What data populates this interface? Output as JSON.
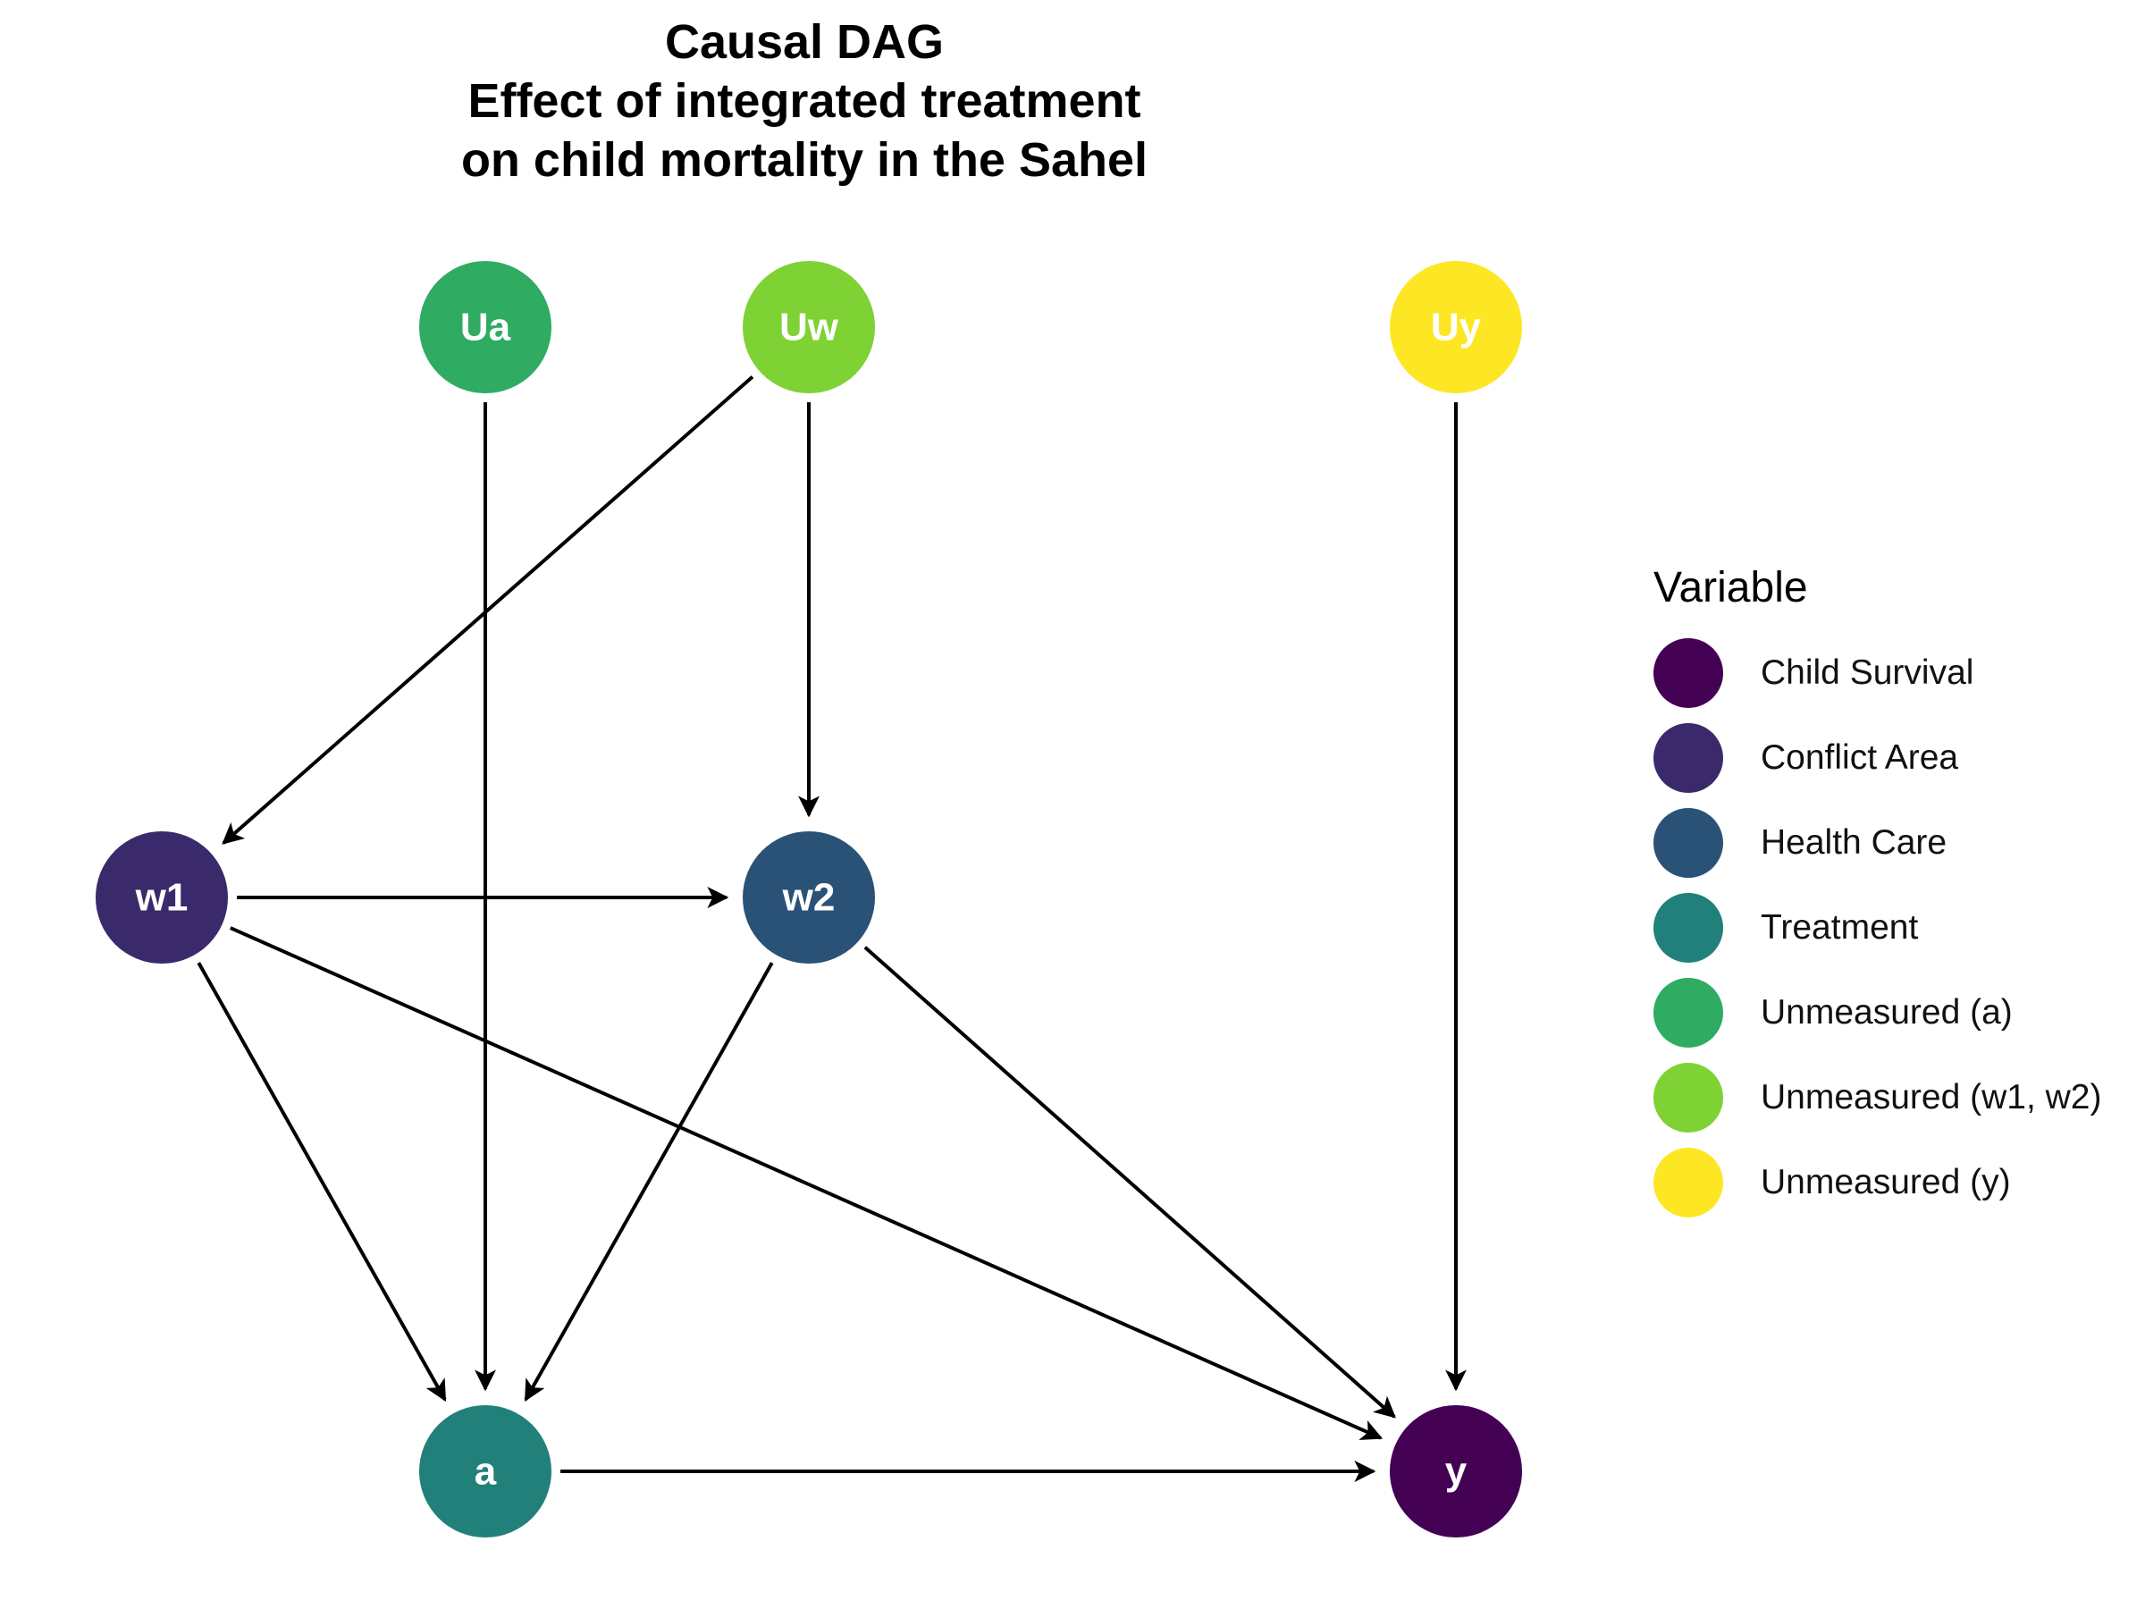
{
  "title_lines": [
    "Causal DAG",
    "Effect of integrated treatment",
    "on child mortality in the Sahel"
  ],
  "nodes": [
    {
      "id": "Ua",
      "label": "Ua",
      "category": "Unmeasured (a)"
    },
    {
      "id": "Uw",
      "label": "Uw",
      "category": "Unmeasured (w1, w2)"
    },
    {
      "id": "Uy",
      "label": "Uy",
      "category": "Unmeasured (y)"
    },
    {
      "id": "w1",
      "label": "w1",
      "category": "Conflict Area"
    },
    {
      "id": "w2",
      "label": "w2",
      "category": "Health Care"
    },
    {
      "id": "a",
      "label": "a",
      "category": "Treatment"
    },
    {
      "id": "y",
      "label": "y",
      "category": "Child Survival"
    }
  ],
  "edges": [
    {
      "from": "Ua",
      "to": "a"
    },
    {
      "from": "Uw",
      "to": "w1"
    },
    {
      "from": "Uw",
      "to": "w2"
    },
    {
      "from": "Uy",
      "to": "y"
    },
    {
      "from": "w1",
      "to": "w2"
    },
    {
      "from": "w1",
      "to": "a"
    },
    {
      "from": "w1",
      "to": "y"
    },
    {
      "from": "w2",
      "to": "a"
    },
    {
      "from": "w2",
      "to": "y"
    },
    {
      "from": "a",
      "to": "y"
    }
  ],
  "legend": {
    "title": "Variable",
    "items": [
      {
        "label": "Child Survival",
        "color": "#440154"
      },
      {
        "label": "Conflict Area",
        "color": "#3b2a6b"
      },
      {
        "label": "Health Care",
        "color": "#2a5277"
      },
      {
        "label": "Treatment",
        "color": "#21807a"
      },
      {
        "label": "Unmeasured (a)",
        "color": "#2fab62"
      },
      {
        "label": "Unmeasured (w1, w2)",
        "color": "#7ed233"
      },
      {
        "label": "Unmeasured (y)",
        "color": "#fde725"
      }
    ]
  }
}
